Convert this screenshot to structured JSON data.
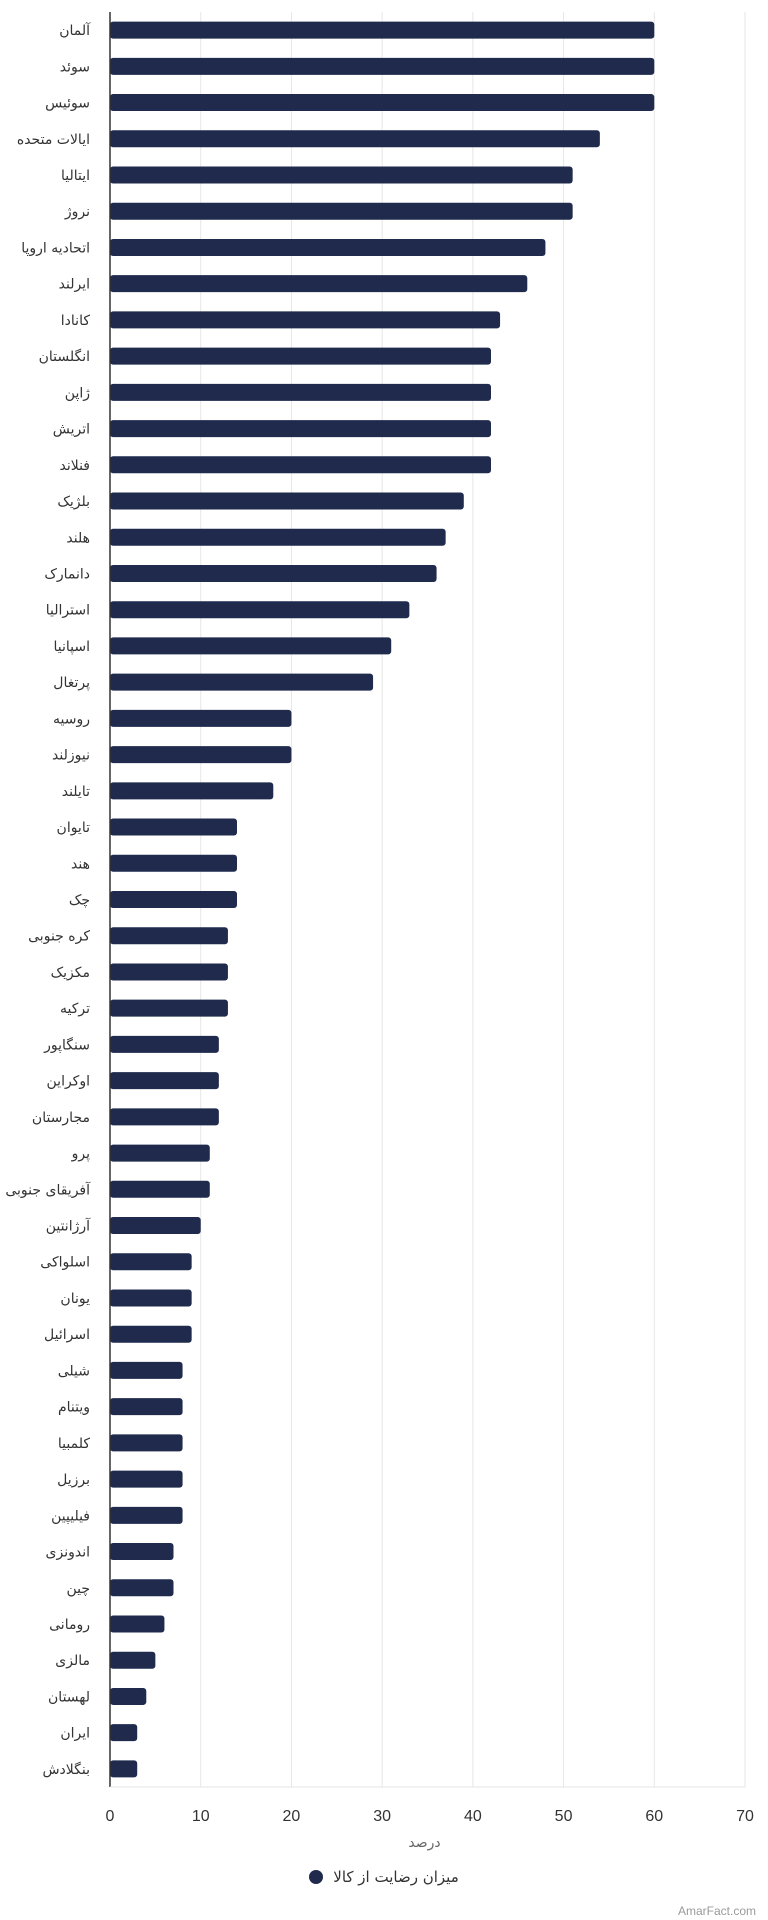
{
  "colors": {
    "bar": "#1f2a4d",
    "grid": "#e6e6e6",
    "axis": "#333333",
    "text": "#333333"
  },
  "legend": {
    "label": "میزان رضایت از کالا"
  },
  "watermark": "AmarFact.com",
  "chart_data": {
    "type": "bar",
    "orientation": "horizontal",
    "xlabel": "درصد",
    "xlim": [
      0,
      70
    ],
    "xticks": [
      0,
      10,
      20,
      30,
      40,
      50,
      60,
      70
    ],
    "grid": true,
    "legend_position": "bottom",
    "categories": [
      "آلمان",
      "سوئد",
      "سوئیس",
      "ایالات متحده",
      "ایتالیا",
      "نروژ",
      "اتحادیه اروپا",
      "ایرلند",
      "کانادا",
      "انگلستان",
      "ژاپن",
      "اتریش",
      "فنلاند",
      "بلژیک",
      "هلند",
      "دانمارک",
      "استرالیا",
      "اسپانیا",
      "پرتغال",
      "روسیه",
      "نیوزلند",
      "تایلند",
      "تایوان",
      "هند",
      "چک",
      "کره جنوبی",
      "مکزیک",
      "ترکیه",
      "سنگاپور",
      "اوکراین",
      "مجارستان",
      "پرو",
      "آفریقای جنوبی",
      "آرژانتین",
      "اسلواکی",
      "یونان",
      "اسرائیل",
      "شیلی",
      "ویتنام",
      "کلمبیا",
      "برزیل",
      "فیلیپین",
      "اندونزی",
      "چین",
      "رومانی",
      "مالزی",
      "لهستان",
      "ایران",
      "بنگلادش"
    ],
    "series": [
      {
        "name": "میزان رضایت از کالا",
        "values": [
          60,
          60,
          60,
          54,
          51,
          51,
          48,
          46,
          43,
          42,
          42,
          42,
          42,
          39,
          37,
          36,
          33,
          31,
          29,
          20,
          20,
          18,
          14,
          14,
          14,
          13,
          13,
          13,
          12,
          12,
          12,
          11,
          11,
          10,
          9,
          9,
          9,
          8,
          8,
          8,
          8,
          8,
          7,
          7,
          6,
          5,
          4,
          3,
          3
        ]
      }
    ]
  }
}
